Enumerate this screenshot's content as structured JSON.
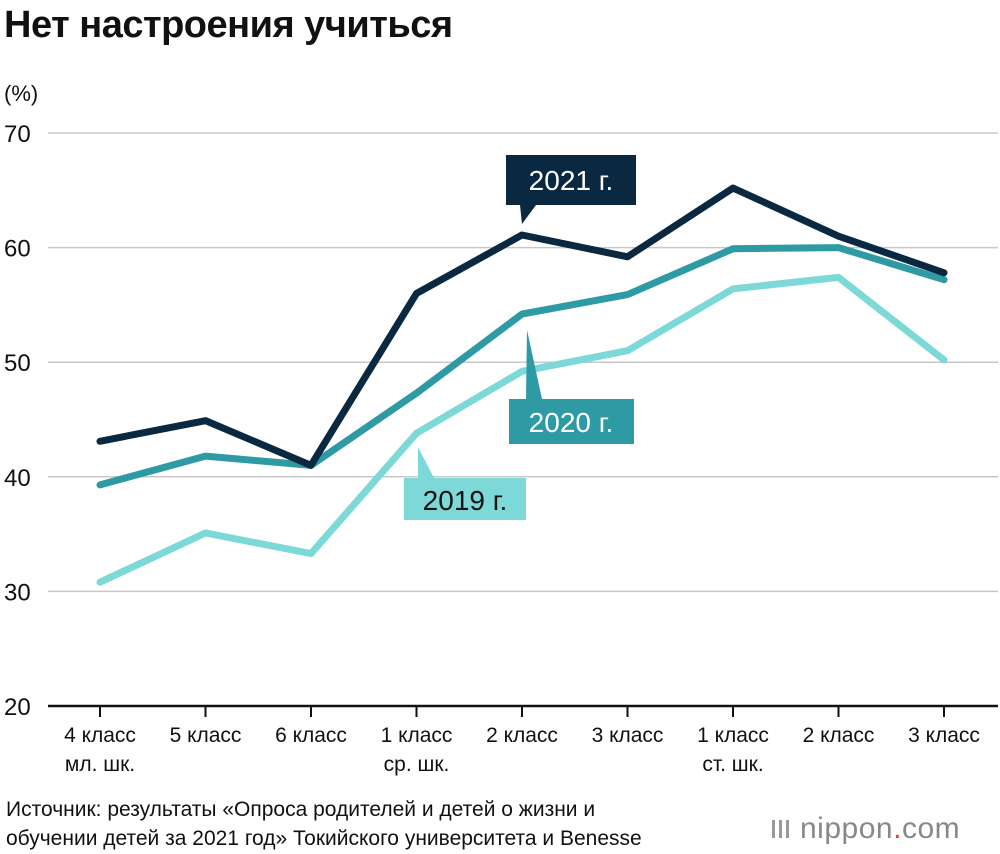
{
  "title": "Нет настроения учиться",
  "source": {
    "line1": "Источник: результаты «Опроса родителей и детей о жизни и",
    "line2": "обучении детей за 2021 год» Токийского университета и Benesse"
  },
  "logo": {
    "name": "nippon",
    "dot": ".",
    "tld": "com"
  },
  "colors": {
    "s2021": "#0a2840",
    "s2020": "#2e9aa3",
    "s2019": "#7dd8d8",
    "grid": "#c8c8c8",
    "axis": "#111111"
  },
  "chart_data": {
    "type": "line",
    "ylabel": "(%)",
    "ylim": [
      20,
      70
    ],
    "yticks": [
      20,
      30,
      40,
      50,
      60,
      70
    ],
    "grid": true,
    "categories": [
      [
        "4 класс",
        "мл. шк."
      ],
      [
        "5 класс"
      ],
      [
        "6 класс"
      ],
      [
        "1 класс",
        "ср. шк."
      ],
      [
        "2 класс"
      ],
      [
        "3 класс"
      ],
      [
        "1 класс",
        "ст. шк."
      ],
      [
        "2 класс"
      ],
      [
        "3 класс"
      ]
    ],
    "series": [
      {
        "name": "2019 г.",
        "color_key": "s2019",
        "values": [
          30.8,
          35.1,
          33.3,
          43.8,
          49.2,
          51.0,
          56.4,
          57.4,
          50.2
        ]
      },
      {
        "name": "2020 г.",
        "color_key": "s2020",
        "values": [
          39.3,
          41.8,
          41.0,
          47.3,
          54.2,
          55.9,
          59.9,
          60.0,
          57.2
        ]
      },
      {
        "name": "2021 г.",
        "color_key": "s2021",
        "values": [
          43.1,
          44.9,
          41.0,
          56.0,
          61.1,
          59.2,
          65.2,
          61.0,
          57.8
        ]
      }
    ]
  }
}
